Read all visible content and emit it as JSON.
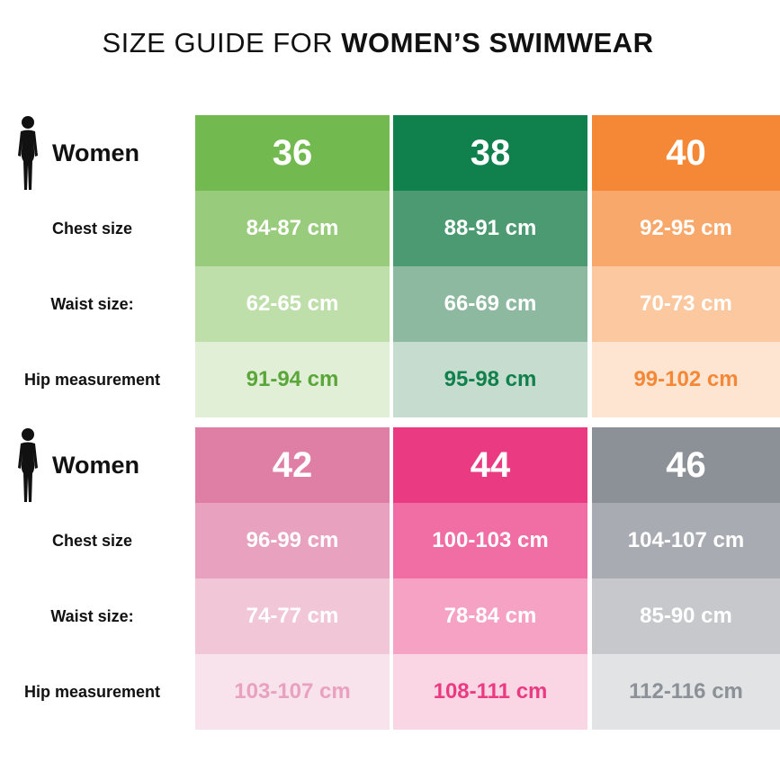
{
  "title": {
    "prefix": "SIZE GUIDE FOR ",
    "emphasis": "WOMEN’S SWIMWEAR"
  },
  "row_labels": {
    "women": "Women",
    "chest": "Chest size",
    "waist": "Waist size:",
    "hip": "Hip measurement"
  },
  "icons": {
    "figure": "woman-figure-icon"
  },
  "blocks": [
    {
      "sizes": [
        {
          "size": "36",
          "chest": "84-87 cm",
          "waist": "62-65 cm",
          "hip": "91-94 cm",
          "colors": {
            "head": "#72b94f",
            "chest": "#99cb7d",
            "waist": "#bedeaa",
            "hip": "#e1efd6",
            "hip_text": "#5aa63a"
          }
        },
        {
          "size": "38",
          "chest": "88-91 cm",
          "waist": "66-69 cm",
          "hip": "95-98 cm",
          "colors": {
            "head": "#10804c",
            "chest": "#4c9a72",
            "waist": "#8db9a0",
            "hip": "#c5dccf",
            "hip_text": "#10804c"
          }
        },
        {
          "size": "40",
          "chest": "92-95 cm",
          "waist": "70-73 cm",
          "hip": "99-102 cm",
          "colors": {
            "head": "#f48837",
            "chest": "#f8a86b",
            "waist": "#fbc8a0",
            "hip": "#fde5d2",
            "hip_text": "#f48837"
          }
        }
      ]
    },
    {
      "sizes": [
        {
          "size": "42",
          "chest": "96-99 cm",
          "waist": "74-77 cm",
          "hip": "103-107 cm",
          "colors": {
            "head": "#e07fa6",
            "chest": "#e8a2bf",
            "waist": "#f1c6d7",
            "hip": "#f8e2ec",
            "hip_text": "#e8a2bf"
          }
        },
        {
          "size": "44",
          "chest": "100-103 cm",
          "waist": "78-84 cm",
          "hip": "108-111 cm",
          "colors": {
            "head": "#ea3b82",
            "chest": "#f06ea4",
            "waist": "#f5a2c4",
            "hip": "#fad5e4",
            "hip_text": "#ea3b82"
          }
        },
        {
          "size": "46",
          "chest": "104-107 cm",
          "waist": "85-90 cm",
          "hip": "112-116 cm",
          "colors": {
            "head": "#8c9097",
            "chest": "#a8abb1",
            "waist": "#c6c8cc",
            "hip": "#e2e3e5",
            "hip_text": "#8c9097"
          }
        }
      ]
    }
  ]
}
